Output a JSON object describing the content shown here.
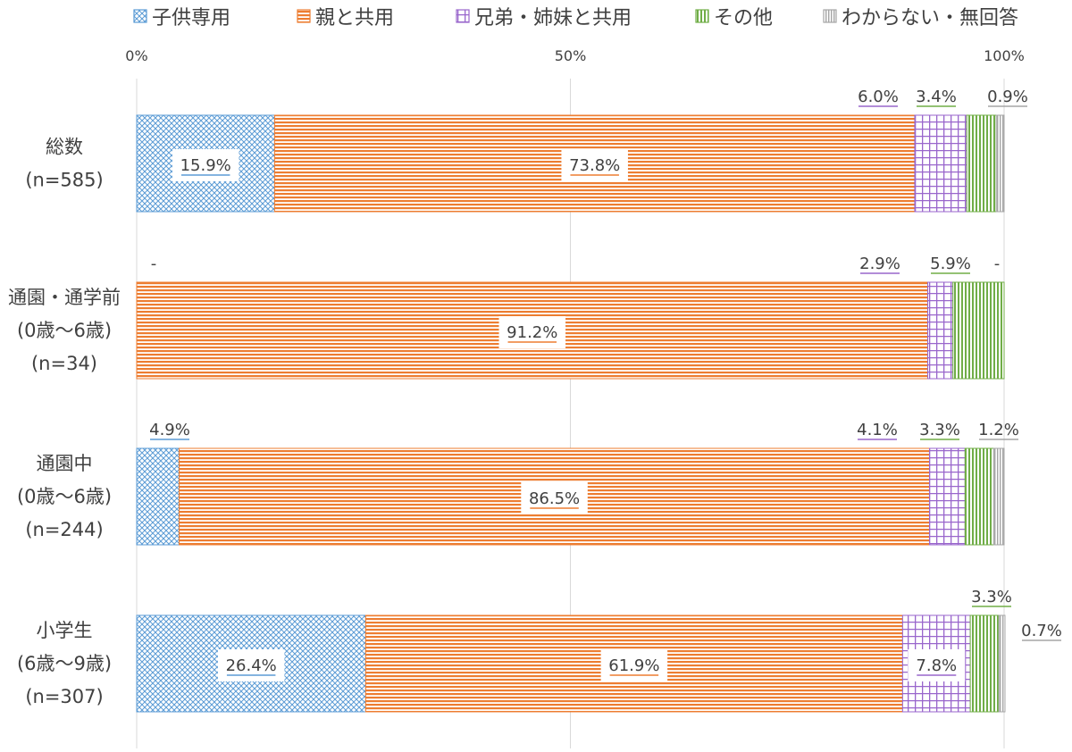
{
  "chart_data": {
    "type": "bar",
    "orientation": "horizontal",
    "stacked": "percent",
    "xlim": [
      0,
      100
    ],
    "x_ticks": [
      "0%",
      "50%",
      "100%"
    ],
    "x_tick_values": [
      0,
      50,
      100
    ],
    "grid": true,
    "legend_position": "top",
    "categories": [
      [
        "総数",
        "(n=585)"
      ],
      [
        "通園・通学前",
        "(0歳〜6歳)",
        "(n=34)"
      ],
      [
        "通園中",
        "(0歳〜6歳)",
        "(n=244)"
      ],
      [
        "小学生",
        "(6歳〜9歳)",
        "(n=307)"
      ]
    ],
    "series": [
      {
        "name": "子供専用",
        "color": "#5b9bd5",
        "pattern": "crosshatch",
        "values": [
          15.9,
          0,
          4.9,
          26.4
        ],
        "labels": [
          "15.9%",
          "-",
          "4.9%",
          "26.4%"
        ]
      },
      {
        "name": "親と共用",
        "color": "#ed7d31",
        "pattern": "horizontal",
        "values": [
          73.8,
          91.2,
          86.5,
          61.9
        ],
        "labels": [
          "73.8%",
          "91.2%",
          "86.5%",
          "61.9%"
        ]
      },
      {
        "name": "兄弟・姉妹と共用",
        "color": "#9966cc",
        "pattern": "grid",
        "values": [
          6.0,
          2.9,
          4.1,
          7.8
        ],
        "labels": [
          "6.0%",
          "2.9%",
          "4.1%",
          "7.8%"
        ]
      },
      {
        "name": "その他",
        "color": "#70ad47",
        "pattern": "vertical",
        "values": [
          3.4,
          5.9,
          3.3,
          3.3
        ],
        "labels": [
          "3.4%",
          "5.9%",
          "3.3%",
          "3.3%"
        ]
      },
      {
        "name": "わからない・無回答",
        "color": "#a5a5a5",
        "pattern": "vertical-fine",
        "values": [
          0.9,
          0,
          1.2,
          0.7
        ],
        "labels": [
          "0.9%",
          "-",
          "1.2%",
          "0.7%"
        ]
      }
    ]
  }
}
